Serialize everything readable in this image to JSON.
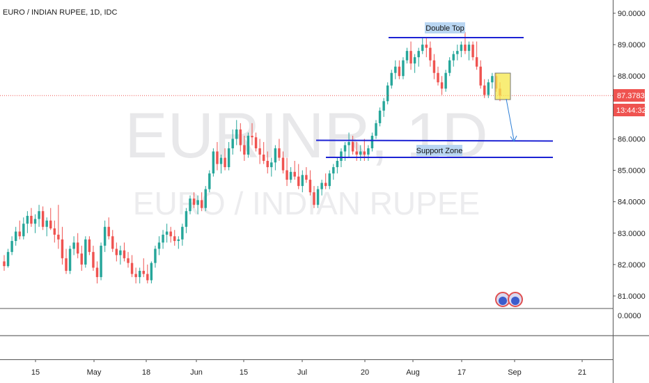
{
  "header": {
    "title": "EURO / INDIAN RUPEE, 1D, IDC"
  },
  "watermark": {
    "symbol": "EURINR, 1D",
    "name": "EURO / INDIAN RUPEE"
  },
  "price_axis": {
    "ticks": [
      "90.0000",
      "89.0000",
      "88.0000",
      "87.0000",
      "86.0000",
      "85.0000",
      "84.0000",
      "83.0000",
      "82.0000",
      "81.0000"
    ],
    "last_price_label": "87.3783",
    "countdown_label": "13:44:32",
    "indicator_tick": "0.0000"
  },
  "time_axis": {
    "ticks": [
      "15",
      "May",
      "18",
      "Jun",
      "15",
      "Jul",
      "20",
      "Aug",
      "17",
      "Sep",
      "21"
    ]
  },
  "annotations": {
    "double_top": "Double Top",
    "support_zone": "Support Zone"
  },
  "colors": {
    "up": "#26a69a",
    "down": "#ef5350",
    "line": "#1c22d4",
    "label_bg": "#b9d6f2",
    "highlight": "#f5e74a",
    "last_price": "#ef5350"
  },
  "chart_data": {
    "type": "candlestick",
    "title": "EURO / INDIAN RUPEE, 1D, IDC",
    "ylim": [
      80.45,
      90.4
    ],
    "last_price": 87.3783,
    "x": [
      "15",
      "May",
      "18",
      "Jun",
      "15",
      "Jul",
      "20",
      "Aug",
      "17",
      "Sep",
      "21"
    ],
    "candles": [
      [
        82.1,
        82.3,
        81.8,
        81.95
      ],
      [
        81.95,
        82.5,
        81.9,
        82.4
      ],
      [
        82.4,
        82.9,
        82.3,
        82.75
      ],
      [
        82.75,
        83.2,
        82.6,
        83.05
      ],
      [
        83.05,
        83.4,
        82.8,
        82.9
      ],
      [
        82.9,
        83.5,
        82.8,
        83.3
      ],
      [
        83.3,
        83.7,
        83.0,
        83.55
      ],
      [
        83.55,
        83.8,
        83.2,
        83.3
      ],
      [
        83.3,
        83.6,
        83.0,
        83.45
      ],
      [
        83.45,
        83.9,
        83.2,
        83.7
      ],
      [
        83.7,
        83.85,
        83.1,
        83.2
      ],
      [
        83.2,
        83.5,
        82.9,
        83.4
      ],
      [
        83.4,
        83.8,
        83.1,
        83.15
      ],
      [
        83.15,
        83.4,
        82.7,
        82.95
      ],
      [
        82.95,
        83.9,
        82.5,
        82.8
      ],
      [
        82.8,
        83.2,
        82.0,
        82.2
      ],
      [
        82.2,
        82.5,
        81.7,
        81.8
      ],
      [
        81.8,
        82.6,
        81.7,
        82.5
      ],
      [
        82.5,
        82.9,
        82.3,
        82.7
      ],
      [
        82.7,
        83.0,
        82.2,
        82.35
      ],
      [
        82.35,
        82.6,
        81.8,
        82.0
      ],
      [
        82.0,
        82.9,
        81.9,
        82.8
      ],
      [
        82.8,
        82.9,
        82.3,
        82.4
      ],
      [
        82.4,
        82.6,
        81.8,
        81.9
      ],
      [
        81.9,
        82.1,
        81.4,
        81.6
      ],
      [
        81.6,
        82.7,
        81.5,
        82.6
      ],
      [
        82.6,
        83.4,
        82.4,
        83.2
      ],
      [
        83.2,
        83.5,
        82.8,
        82.9
      ],
      [
        82.9,
        83.1,
        82.4,
        82.5
      ],
      [
        82.5,
        82.7,
        82.1,
        82.3
      ],
      [
        82.3,
        82.6,
        82.0,
        82.45
      ],
      [
        82.45,
        82.7,
        82.1,
        82.2
      ],
      [
        82.2,
        82.4,
        81.9,
        82.05
      ],
      [
        82.05,
        82.3,
        81.6,
        81.7
      ],
      [
        81.7,
        81.9,
        81.4,
        81.6
      ],
      [
        81.6,
        81.9,
        81.4,
        81.8
      ],
      [
        81.8,
        82.2,
        81.6,
        81.7
      ],
      [
        81.7,
        82.0,
        81.4,
        81.5
      ],
      [
        81.5,
        82.1,
        81.4,
        82.05
      ],
      [
        82.05,
        82.6,
        81.9,
        82.5
      ],
      [
        82.5,
        82.9,
        82.3,
        82.7
      ],
      [
        82.7,
        83.1,
        82.5,
        82.95
      ],
      [
        82.95,
        83.3,
        82.7,
        83.05
      ],
      [
        83.05,
        83.2,
        82.7,
        82.9
      ],
      [
        82.9,
        83.1,
        82.6,
        82.75
      ],
      [
        82.75,
        82.9,
        82.5,
        82.8
      ],
      [
        82.8,
        83.3,
        82.6,
        83.2
      ],
      [
        83.2,
        83.8,
        83.0,
        83.7
      ],
      [
        83.7,
        84.2,
        83.6,
        84.1
      ],
      [
        84.1,
        84.3,
        83.8,
        83.9
      ],
      [
        83.9,
        84.2,
        83.6,
        84.05
      ],
      [
        84.05,
        84.3,
        83.7,
        83.8
      ],
      [
        83.8,
        84.5,
        83.7,
        84.4
      ],
      [
        84.4,
        85.0,
        84.3,
        84.9
      ],
      [
        84.9,
        85.7,
        84.8,
        85.6
      ],
      [
        85.6,
        85.9,
        85.0,
        85.2
      ],
      [
        85.2,
        85.5,
        84.9,
        85.4
      ],
      [
        85.4,
        85.7,
        85.0,
        85.1
      ],
      [
        85.1,
        85.9,
        85.0,
        85.7
      ],
      [
        85.7,
        86.3,
        85.5,
        86.0
      ],
      [
        86.0,
        86.6,
        85.8,
        86.3
      ],
      [
        86.3,
        86.5,
        85.6,
        85.8
      ],
      [
        85.8,
        86.1,
        85.3,
        85.5
      ],
      [
        85.5,
        86.2,
        85.4,
        86.1
      ],
      [
        86.1,
        86.5,
        85.8,
        86.05
      ],
      [
        86.05,
        86.2,
        85.6,
        85.7
      ],
      [
        85.7,
        86.0,
        85.2,
        85.5
      ],
      [
        85.5,
        85.9,
        85.2,
        85.3
      ],
      [
        85.3,
        85.6,
        84.9,
        85.1
      ],
      [
        85.1,
        85.4,
        84.8,
        85.25
      ],
      [
        85.25,
        85.8,
        85.0,
        85.7
      ],
      [
        85.7,
        86.0,
        85.3,
        85.4
      ],
      [
        85.4,
        85.6,
        84.9,
        85.0
      ],
      [
        85.0,
        85.4,
        84.5,
        84.7
      ],
      [
        84.7,
        85.1,
        84.6,
        84.95
      ],
      [
        84.95,
        85.3,
        84.7,
        84.8
      ],
      [
        84.8,
        85.2,
        84.4,
        84.5
      ],
      [
        84.5,
        85.0,
        84.3,
        84.85
      ],
      [
        84.85,
        85.1,
        84.6,
        84.7
      ],
      [
        84.7,
        85.0,
        84.2,
        84.3
      ],
      [
        84.3,
        84.5,
        83.8,
        83.9
      ],
      [
        83.9,
        84.5,
        83.8,
        84.4
      ],
      [
        84.4,
        84.7,
        84.2,
        84.6
      ],
      [
        84.6,
        84.9,
        84.4,
        84.5
      ],
      [
        84.5,
        85.0,
        84.4,
        84.9
      ],
      [
        84.9,
        85.2,
        84.7,
        85.1
      ],
      [
        85.1,
        85.4,
        84.9,
        85.3
      ],
      [
        85.3,
        85.7,
        85.1,
        85.6
      ],
      [
        85.6,
        85.9,
        85.3,
        85.8
      ],
      [
        85.8,
        86.2,
        85.4,
        85.9
      ],
      [
        85.9,
        86.1,
        85.5,
        85.6
      ],
      [
        85.6,
        85.9,
        85.3,
        85.5
      ],
      [
        85.5,
        85.8,
        85.3,
        85.6
      ],
      [
        85.6,
        86.0,
        85.3,
        85.5
      ],
      [
        85.5,
        85.8,
        85.3,
        85.7
      ],
      [
        85.7,
        86.2,
        85.6,
        86.1
      ],
      [
        86.1,
        86.6,
        86.0,
        86.5
      ],
      [
        86.5,
        87.0,
        86.4,
        86.9
      ],
      [
        86.9,
        87.3,
        86.7,
        87.2
      ],
      [
        87.2,
        87.8,
        87.1,
        87.7
      ],
      [
        87.7,
        88.2,
        87.6,
        88.1
      ],
      [
        88.1,
        88.5,
        87.9,
        88.3
      ],
      [
        88.3,
        88.5,
        87.9,
        88.0
      ],
      [
        88.0,
        88.6,
        87.9,
        88.5
      ],
      [
        88.5,
        88.9,
        88.4,
        88.8
      ],
      [
        88.8,
        89.1,
        88.2,
        88.4
      ],
      [
        88.4,
        88.7,
        88.1,
        88.6
      ],
      [
        88.6,
        88.9,
        88.3,
        88.8
      ],
      [
        88.8,
        89.2,
        88.7,
        89.0
      ],
      [
        89.0,
        89.2,
        88.6,
        88.9
      ],
      [
        88.9,
        89.1,
        88.3,
        88.5
      ],
      [
        88.5,
        88.7,
        87.9,
        88.1
      ],
      [
        88.1,
        88.3,
        87.7,
        87.8
      ],
      [
        87.8,
        88.0,
        87.4,
        87.6
      ],
      [
        87.6,
        88.2,
        87.5,
        88.1
      ],
      [
        88.1,
        88.6,
        88.0,
        88.5
      ],
      [
        88.5,
        88.8,
        88.3,
        88.7
      ],
      [
        88.7,
        89.0,
        88.5,
        88.8
      ],
      [
        88.8,
        89.1,
        88.6,
        89.0
      ],
      [
        89.0,
        89.4,
        88.7,
        88.8
      ],
      [
        88.8,
        89.1,
        88.5,
        89.0
      ],
      [
        89.0,
        89.1,
        88.5,
        88.6
      ],
      [
        88.6,
        89.1,
        88.2,
        88.3
      ],
      [
        88.3,
        88.5,
        87.6,
        87.7
      ],
      [
        87.7,
        87.9,
        87.3,
        87.4
      ],
      [
        87.4,
        87.9,
        87.3,
        87.8
      ],
      [
        87.8,
        88.1,
        87.6,
        88.0
      ],
      [
        88.0,
        88.1,
        87.5,
        87.6
      ],
      [
        87.6,
        87.8,
        87.2,
        87.38
      ]
    ]
  }
}
